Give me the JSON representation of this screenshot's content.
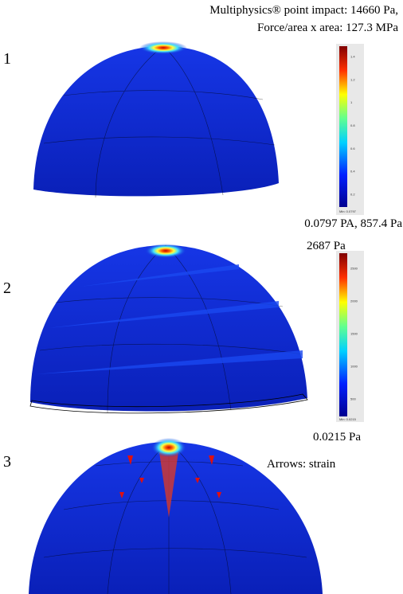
{
  "header": {
    "line1": "Multiphysics® point impact: 14660 Pa,",
    "line2": "Force/area x area: 127.3 MPa"
  },
  "panels": [
    {
      "label": "1",
      "colorbar_ticks": [
        "1.4",
        "1.2",
        "1",
        "0.8",
        "0.6",
        "0.4",
        "0.2"
      ],
      "colorbar_min": "Min: 0.0797",
      "caption": "0.0797 PA, 857.4 Pa"
    },
    {
      "label": "2",
      "colorbar_max": "2687 Pa",
      "colorbar_ticks": [
        "2500",
        "2000",
        "1500",
        "1000",
        "500"
      ],
      "colorbar_min": "Min: 0.0215",
      "caption": "0.0215 Pa"
    },
    {
      "label": "3",
      "note": "Arrows: strain"
    }
  ]
}
